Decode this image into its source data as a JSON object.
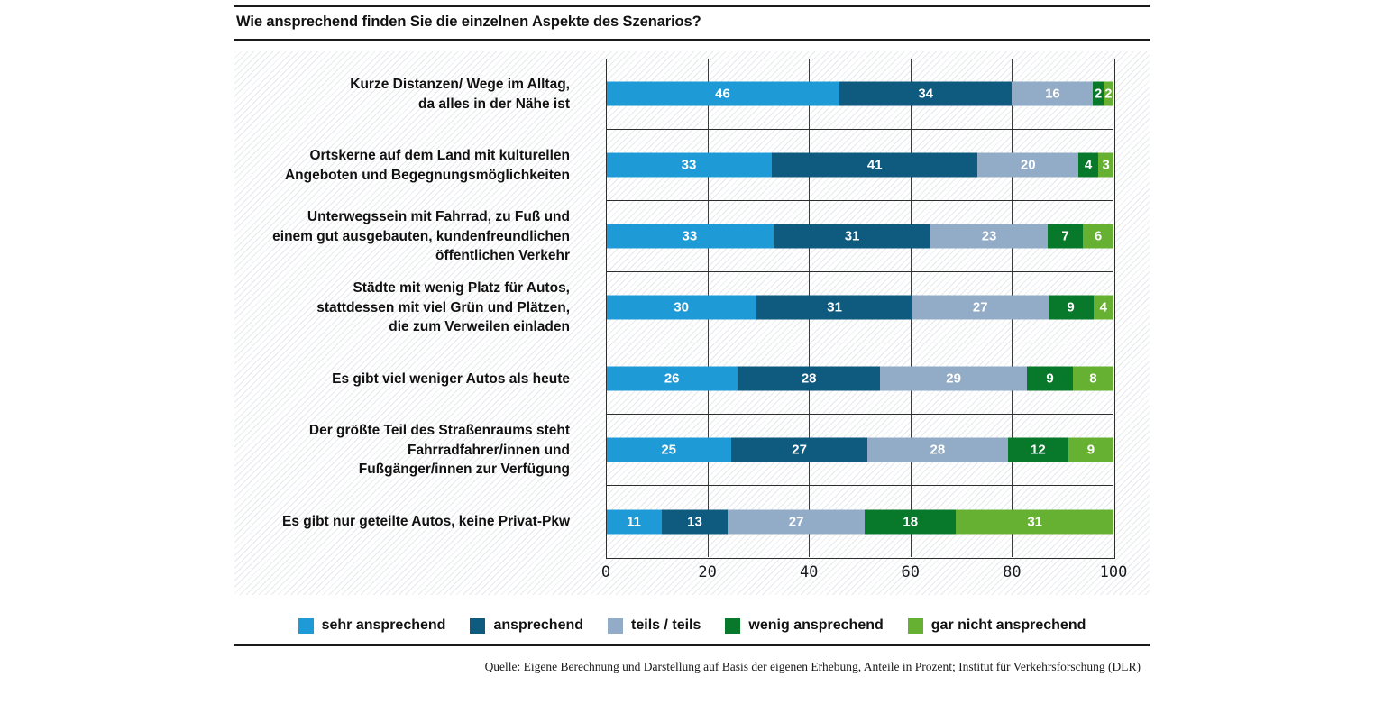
{
  "title": "Wie ansprechend finden Sie die einzelnen Aspekte des Szenarios?",
  "source": "Quelle: Eigene Berechnung und Darstellung auf Basis der eigenen Erhebung, Anteile in Prozent; Institut für Verkehrsforschung (DLR)",
  "chart_data": {
    "type": "bar",
    "orientation": "horizontal",
    "stacked": true,
    "title": "Wie ansprechend finden Sie die einzelnen Aspekte des Szenarios?",
    "xlabel": "",
    "ylabel": "",
    "xlim": [
      0,
      100
    ],
    "x_ticks": [
      0,
      20,
      40,
      60,
      80,
      100
    ],
    "grid": true,
    "value_labels": true,
    "legend_position": "bottom",
    "categories": [
      "Kurze Distanzen/ Wege im Alltag,\nda alles in der Nähe ist",
      "Ortskerne auf dem Land mit kulturellen\nAngeboten und Begegnungsmöglichkeiten",
      "Unterwegssein mit Fahrrad, zu Fuß und\neinem gut ausgebauten, kundenfreundlichen\nöffentlichen Verkehr",
      "Städte mit wenig Platz für Autos,\nstattdessen mit viel Grün und Plätzen,\ndie zum Verweilen einladen",
      "Es gibt viel weniger Autos als heute",
      "Der größte Teil des Straßenraums steht\nFahrradfahrer/innen und\nFußgänger/innen zur Verfügung",
      "Es gibt nur geteilte Autos, keine Privat-Pkw"
    ],
    "series": [
      {
        "name": "sehr ansprechend",
        "color": "#1E9BD7",
        "values": [
          46,
          33,
          33,
          30,
          26,
          25,
          11
        ]
      },
      {
        "name": "ansprechend",
        "color": "#0E5B7F",
        "values": [
          34,
          41,
          31,
          31,
          28,
          27,
          13
        ]
      },
      {
        "name": "teils / teils",
        "color": "#92ABC6",
        "values": [
          16,
          20,
          23,
          27,
          29,
          28,
          27
        ]
      },
      {
        "name": "wenig ansprechend",
        "color": "#08792B",
        "values": [
          2,
          4,
          7,
          9,
          9,
          12,
          18
        ]
      },
      {
        "name": "gar nicht ansprechend",
        "color": "#66B131",
        "values": [
          2,
          3,
          6,
          4,
          8,
          9,
          31
        ]
      }
    ]
  }
}
